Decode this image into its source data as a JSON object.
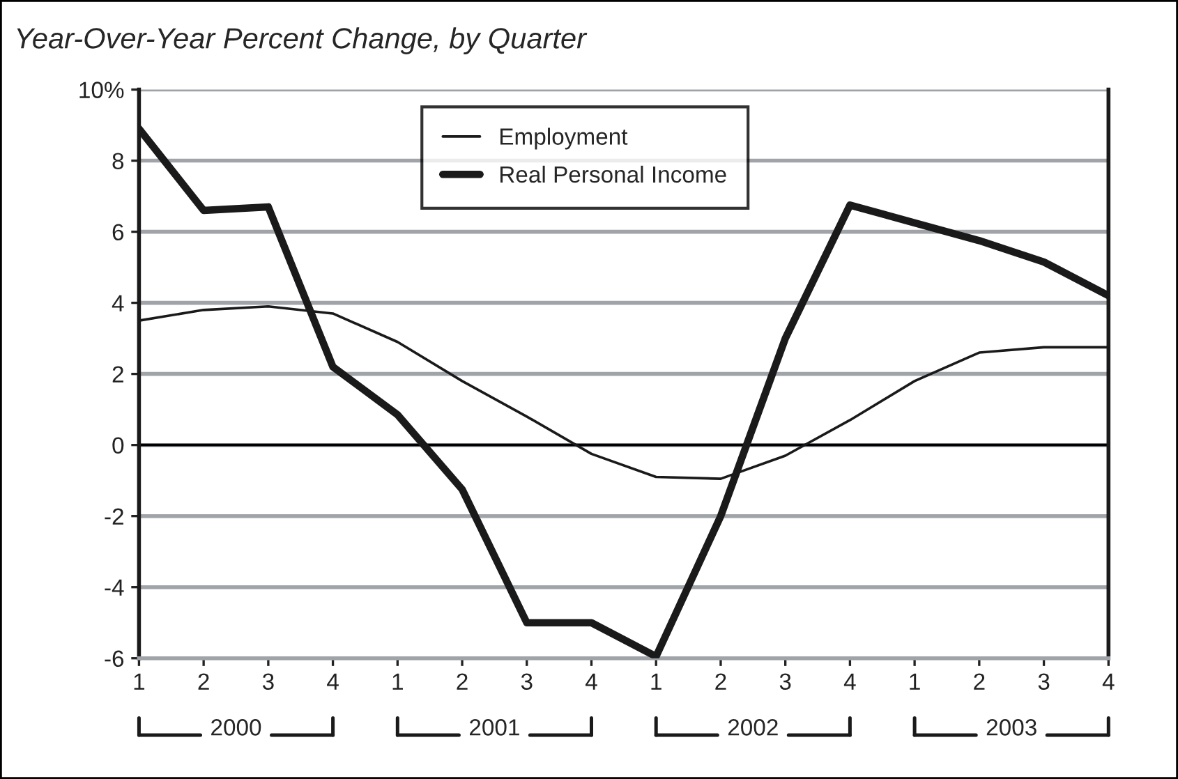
{
  "chart_data": {
    "type": "line",
    "title": "Year-Over-Year Percent Change, by Quarter",
    "categories": [
      "1",
      "2",
      "3",
      "4",
      "1",
      "2",
      "3",
      "4",
      "1",
      "2",
      "3",
      "4",
      "1",
      "2",
      "3",
      "4"
    ],
    "series": [
      {
        "name": "Employment",
        "color": "#1a1a1a",
        "values": [
          3.5,
          3.8,
          3.9,
          3.7,
          2.9,
          1.8,
          0.8,
          -0.25,
          -0.9,
          -0.95,
          -0.3,
          0.7,
          1.8,
          2.6,
          2.75,
          2.75
        ]
      },
      {
        "name": "Real Personal Income",
        "color": "#1a1a1a",
        "values": [
          8.9,
          6.6,
          6.7,
          2.2,
          0.85,
          -1.25,
          -5.0,
          -5.0,
          -5.95,
          -2.0,
          3.0,
          6.75,
          6.25,
          5.75,
          5.15,
          4.2
        ]
      }
    ],
    "ylim": [
      -6,
      10
    ],
    "yticks": [
      -6,
      -4,
      -2,
      0,
      2,
      4,
      6,
      8,
      {
        "value": 10,
        "label": "10%"
      }
    ],
    "grid": "y",
    "ref_lines": [
      {
        "axis": "y",
        "value": 0,
        "color": "#000000"
      }
    ],
    "legend": "top",
    "annotations": [
      "2000",
      "2001",
      "2002",
      "2003"
    ]
  }
}
